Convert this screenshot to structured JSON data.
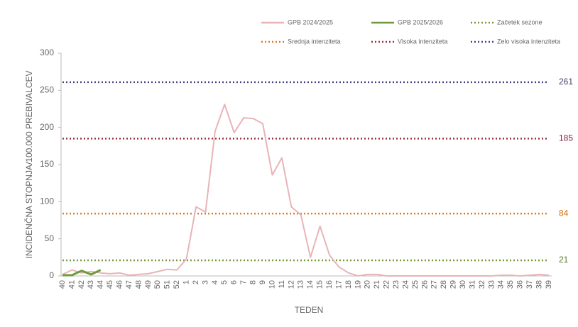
{
  "chart_data": {
    "type": "line",
    "y_label": "INCIDENČNA  STOPNJA/100.000  PREBIVALCEV",
    "x_label": "TEDEN",
    "categories": [
      "40",
      "41",
      "42",
      "43",
      "44",
      "45",
      "46",
      "47",
      "48",
      "49",
      "50",
      "51",
      "52",
      "1",
      "2",
      "3",
      "4",
      "5",
      "6",
      "7",
      "8",
      "9",
      "10",
      "11",
      "12",
      "13",
      "14",
      "15",
      "16",
      "17",
      "18",
      "19",
      "20",
      "21",
      "22",
      "23",
      "24",
      "25",
      "26",
      "27",
      "28",
      "29",
      "30",
      "31",
      "32",
      "33",
      "34",
      "35",
      "36",
      "37",
      "38",
      "39"
    ],
    "series": [
      {
        "name": "GPB 2024/2025",
        "color": "#e8b4b8",
        "width": 2,
        "values": [
          2,
          8,
          4,
          6,
          4,
          3,
          4,
          1,
          2,
          3,
          6,
          9,
          8,
          23,
          93,
          86,
          195,
          231,
          193,
          213,
          212,
          205,
          136,
          159,
          93,
          82,
          25,
          67,
          28,
          12,
          4,
          0,
          2,
          2,
          0,
          0,
          0,
          0,
          0,
          0,
          0,
          0,
          0,
          0,
          0,
          0,
          1,
          1,
          0,
          1,
          2,
          1
        ]
      },
      {
        "name": "GPB 2025/2026",
        "color": "#6e9a3a",
        "width": 3,
        "values": [
          1,
          1,
          7,
          2,
          8,
          null,
          null,
          null,
          null,
          null,
          null,
          null,
          null,
          null,
          null,
          null,
          null,
          null,
          null,
          null,
          null,
          null,
          null,
          null,
          null,
          null,
          null,
          null,
          null,
          null,
          null,
          null,
          null,
          null,
          null,
          null,
          null,
          null,
          null,
          null,
          null,
          null,
          null,
          null,
          null,
          null,
          null,
          null,
          null,
          null,
          null,
          null
        ]
      }
    ],
    "thresholds": [
      {
        "name": "Začetek sezone",
        "color": "#7a9a3a",
        "label_color": "#5e7a2a",
        "value": 21
      },
      {
        "name": "Srednja intenziteta",
        "color": "#e07a20",
        "label_color": "#d07010",
        "value": 84
      },
      {
        "name": "Visoka intenziteta",
        "color": "#9e3040",
        "label_color": "#8b1a4a",
        "value": 185
      },
      {
        "name": "Zelo visoka intenziteta",
        "color": "#454585",
        "label_color": "#454565",
        "value": 261
      }
    ],
    "ylim": [
      0,
      300
    ],
    "yticks": [
      0,
      50,
      100,
      150,
      200,
      250,
      300
    ]
  }
}
